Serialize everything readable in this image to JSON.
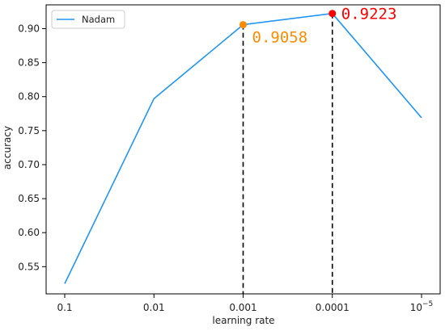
{
  "chart_data": {
    "type": "line",
    "categories": [
      "0.1",
      "0.01",
      "0.001",
      "0.0001",
      "10^-5"
    ],
    "tick_labels": [
      "0.1",
      "0.01",
      "0.001",
      "0.0001",
      "10"
    ],
    "tick_label_superscript": "−5",
    "series": [
      {
        "name": "Nadam",
        "values": [
          0.525,
          0.797,
          0.9058,
          0.9223,
          0.769
        ],
        "color": "#2196f3"
      }
    ],
    "xlabel": "learning rate",
    "ylabel": "accuracy",
    "ylim": [
      0.51,
      0.935
    ],
    "yticks": [
      0.55,
      0.6,
      0.65,
      0.7,
      0.75,
      0.8,
      0.85,
      0.9
    ],
    "ytick_labels": [
      "0.55",
      "0.60",
      "0.65",
      "0.70",
      "0.75",
      "0.80",
      "0.85",
      "0.90"
    ],
    "grid": false,
    "legend": "top-left",
    "annotations": [
      {
        "category_index": 2,
        "value": 0.9058,
        "text": "0.9058",
        "color": "#ff8c00",
        "dashed_vline": true
      },
      {
        "category_index": 3,
        "value": 0.9223,
        "text": "0.9223",
        "color": "#ff0000",
        "dashed_vline": true
      }
    ]
  }
}
